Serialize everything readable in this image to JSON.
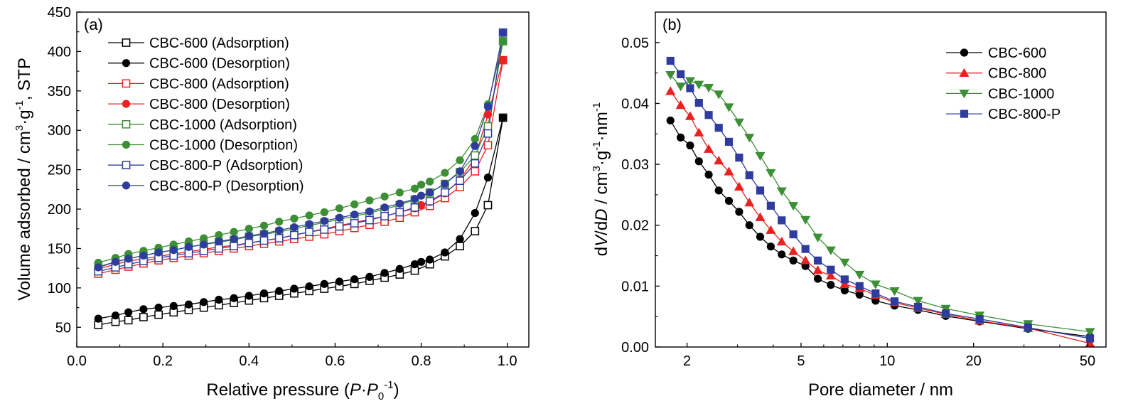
{
  "chart_data": [
    {
      "type": "scatter",
      "panel_label": "(a)",
      "xlabel": "Relative pressure (P·P0-1)",
      "xlabel_parts": {
        "pre": "Relative pressure (",
        "p1": "P",
        "dot": "·",
        "p2": "P",
        "sub": "0",
        "sup": "-1",
        "post": ")"
      },
      "ylabel": "Volume adsorbed / cm3·g-1, STP",
      "ylabel_parts": {
        "pre": "Volume adsorbed / cm",
        "sup1": "3",
        "mid": "·g",
        "sup2": "-1",
        "post": ", STP"
      },
      "xlim": [
        0.0,
        1.05
      ],
      "ylim": [
        25,
        450
      ],
      "xticks": [
        "0.0",
        "0.2",
        "0.4",
        "0.6",
        "0.8",
        "1.0"
      ],
      "xtick_values": [
        0.0,
        0.2,
        0.4,
        0.6,
        0.8,
        1.0
      ],
      "yticks": [
        "50",
        "100",
        "150",
        "200",
        "250",
        "300",
        "350",
        "400",
        "450"
      ],
      "ytick_values": [
        50,
        100,
        150,
        200,
        250,
        300,
        350,
        400,
        450
      ],
      "legend_position": "top-left",
      "x_ads": [
        0.05,
        0.09,
        0.12,
        0.155,
        0.19,
        0.225,
        0.26,
        0.295,
        0.33,
        0.365,
        0.4,
        0.435,
        0.47,
        0.505,
        0.54,
        0.575,
        0.61,
        0.645,
        0.68,
        0.715,
        0.75,
        0.785,
        0.82,
        0.855,
        0.89,
        0.925,
        0.955,
        0.99
      ],
      "x_des": [
        0.99,
        0.955,
        0.925,
        0.89,
        0.855,
        0.82,
        0.8,
        0.785,
        0.75,
        0.715,
        0.68,
        0.645,
        0.61,
        0.575,
        0.54,
        0.505,
        0.47,
        0.435,
        0.4,
        0.365,
        0.33,
        0.295,
        0.26,
        0.225,
        0.19,
        0.155,
        0.12,
        0.09,
        0.05
      ],
      "series": [
        {
          "name": "CBC-600 (Adsorption)",
          "color": "#000000",
          "marker": "open-square",
          "x_key": "x_ads",
          "values": [
            53,
            57,
            59,
            63,
            66,
            69,
            72,
            75,
            78,
            81,
            84,
            87,
            90,
            93,
            96,
            99,
            102,
            105,
            109,
            113,
            117,
            122,
            130,
            140,
            153,
            172,
            205,
            316
          ]
        },
        {
          "name": "CBC-600 (Desorption)",
          "color": "#000000",
          "marker": "filled-circle",
          "x_key": "x_des",
          "values": [
            316,
            240,
            195,
            162,
            145,
            136,
            133,
            130,
            124,
            119,
            114,
            111,
            108,
            105,
            102,
            99,
            96,
            93,
            90,
            87,
            85,
            82,
            79,
            77,
            75,
            73,
            69,
            65,
            61
          ]
        },
        {
          "name": "CBC-800 (Adsorption)",
          "color": "#e8221f",
          "marker": "open-square",
          "x_key": "x_ads",
          "values": [
            118,
            123,
            127,
            131,
            135,
            138,
            141,
            144,
            147,
            150,
            153,
            156,
            159,
            162,
            165,
            168,
            172,
            176,
            180,
            184,
            189,
            196,
            204,
            214,
            228,
            248,
            281,
            389
          ]
        },
        {
          "name": "CBC-800 (Desorption)",
          "color": "#e8221f",
          "marker": "filled-circle",
          "x_key": "x_des",
          "values": [
            389,
            320,
            265,
            237,
            220,
            209,
            205,
            201,
            196,
            191,
            187,
            183,
            179,
            175,
            171,
            167,
            163,
            160,
            157,
            154,
            152,
            149,
            146,
            143,
            140,
            137,
            134,
            130,
            124
          ]
        },
        {
          "name": "CBC-1000 (Adsorption)",
          "color": "#3c8f35",
          "marker": "open-square",
          "x_key": "x_ads",
          "values": [
            127,
            133,
            137,
            141,
            145,
            148,
            152,
            155,
            158,
            161,
            165,
            168,
            171,
            175,
            179,
            183,
            187,
            191,
            195,
            200,
            205,
            212,
            221,
            232,
            247,
            268,
            305,
            413
          ]
        },
        {
          "name": "CBC-1000 (Desorption)",
          "color": "#3c8f35",
          "marker": "filled-circle",
          "x_key": "x_des",
          "values": [
            413,
            333,
            289,
            262,
            246,
            235,
            231,
            226,
            221,
            216,
            211,
            206,
            201,
            196,
            192,
            188,
            184,
            179,
            175,
            171,
            167,
            163,
            159,
            155,
            151,
            147,
            143,
            138,
            132
          ]
        },
        {
          "name": "CBC-800-P (Adsorption)",
          "color": "#2f3c9e",
          "marker": "open-square",
          "x_key": "x_ads",
          "values": [
            121,
            126,
            130,
            134,
            138,
            141,
            144,
            147,
            150,
            153,
            157,
            160,
            163,
            167,
            171,
            174,
            178,
            182,
            186,
            191,
            196,
            202,
            210,
            221,
            236,
            258,
            296,
            424
          ]
        },
        {
          "name": "CBC-800-P (Desorption)",
          "color": "#2f3c9e",
          "marker": "filled-circle",
          "x_key": "x_des",
          "values": [
            424,
            330,
            280,
            248,
            232,
            221,
            217,
            213,
            207,
            202,
            197,
            193,
            189,
            185,
            181,
            177,
            173,
            169,
            166,
            162,
            159,
            155,
            152,
            148,
            145,
            141,
            137,
            133,
            126
          ]
        }
      ]
    },
    {
      "type": "line",
      "panel_label": "(b)",
      "xlabel": "Pore diameter / nm",
      "ylabel": "dV/dD / cm3·g-1·nm-1",
      "ylabel_parts": {
        "d1": "d",
        "v": "V",
        "slash": "/d",
        "dd": "D",
        "unit": " / cm",
        "sup1": "3",
        "mid": "·g",
        "sup2": "-1",
        "nm": "·nm",
        "sup3": "-1"
      },
      "x_scale": "log",
      "xlim": [
        1.55,
        58
      ],
      "ylim": [
        0.0,
        0.055
      ],
      "xticks": [
        "2",
        "5",
        "10",
        "20",
        "50"
      ],
      "xtick_values": [
        2,
        5,
        10,
        20,
        50
      ],
      "yticks": [
        "0.00",
        "0.01",
        "0.02",
        "0.03",
        "0.04",
        "0.05"
      ],
      "ytick_values": [
        0.0,
        0.01,
        0.02,
        0.03,
        0.04,
        0.05
      ],
      "legend_position": "top-right",
      "series": [
        {
          "name": "CBC-600",
          "color": "#000000",
          "marker": "circle",
          "x": [
            1.75,
            1.9,
            2.05,
            2.2,
            2.38,
            2.58,
            2.8,
            3.04,
            3.3,
            3.6,
            3.92,
            4.28,
            4.7,
            5.18,
            5.72,
            6.35,
            7.1,
            8.0,
            9.1,
            10.6,
            12.8,
            16.0,
            21.0,
            31.0,
            51.0
          ],
          "values": [
            0.0372,
            0.0344,
            0.0331,
            0.0305,
            0.0283,
            0.0257,
            0.024,
            0.0222,
            0.02,
            0.0181,
            0.0165,
            0.0152,
            0.0142,
            0.0133,
            0.0112,
            0.0102,
            0.0093,
            0.0086,
            0.0076,
            0.0068,
            0.0061,
            0.0051,
            0.0042,
            0.003,
            0.0017
          ]
        },
        {
          "name": "CBC-800",
          "color": "#e8221f",
          "marker": "triangle-up",
          "x": [
            1.75,
            1.9,
            2.05,
            2.2,
            2.38,
            2.58,
            2.8,
            3.04,
            3.3,
            3.6,
            3.92,
            4.28,
            4.7,
            5.18,
            5.72,
            6.35,
            7.1,
            8.0,
            9.1,
            10.6,
            12.8,
            16.0,
            21.0,
            31.0,
            51.0
          ],
          "values": [
            0.042,
            0.0397,
            0.0379,
            0.0352,
            0.0325,
            0.0306,
            0.0288,
            0.0263,
            0.0237,
            0.0213,
            0.0192,
            0.0173,
            0.0157,
            0.0142,
            0.0126,
            0.0117,
            0.0103,
            0.0096,
            0.0085,
            0.0073,
            0.0064,
            0.0054,
            0.0043,
            0.0031,
            0.0006
          ]
        },
        {
          "name": "CBC-1000",
          "color": "#3c8f35",
          "marker": "triangle-down",
          "x": [
            1.75,
            1.9,
            2.05,
            2.2,
            2.38,
            2.58,
            2.8,
            3.04,
            3.3,
            3.6,
            3.92,
            4.28,
            4.7,
            5.18,
            5.72,
            6.35,
            7.1,
            8.0,
            9.1,
            10.6,
            12.8,
            16.0,
            21.0,
            31.0,
            51.0
          ],
          "values": [
            0.0447,
            0.0428,
            0.0437,
            0.0431,
            0.0426,
            0.0415,
            0.0394,
            0.0369,
            0.0344,
            0.0314,
            0.0286,
            0.0256,
            0.0232,
            0.0209,
            0.018,
            0.0159,
            0.0139,
            0.0119,
            0.0103,
            0.0092,
            0.0076,
            0.0063,
            0.0052,
            0.0038,
            0.0025
          ]
        },
        {
          "name": "CBC-800-P",
          "color": "#2f3c9e",
          "marker": "square",
          "x": [
            1.75,
            1.9,
            2.05,
            2.2,
            2.38,
            2.58,
            2.8,
            3.04,
            3.3,
            3.6,
            3.92,
            4.28,
            4.7,
            5.18,
            5.72,
            6.35,
            7.1,
            8.0,
            9.1,
            10.6,
            12.8,
            16.0,
            21.0,
            31.0,
            51.0
          ],
          "values": [
            0.047,
            0.0448,
            0.0425,
            0.0401,
            0.0381,
            0.036,
            0.0337,
            0.0311,
            0.0282,
            0.0257,
            0.0232,
            0.0208,
            0.0185,
            0.0161,
            0.0142,
            0.0127,
            0.0111,
            0.01,
            0.0088,
            0.0075,
            0.0066,
            0.0055,
            0.0046,
            0.0032,
            0.0014
          ]
        }
      ]
    }
  ]
}
